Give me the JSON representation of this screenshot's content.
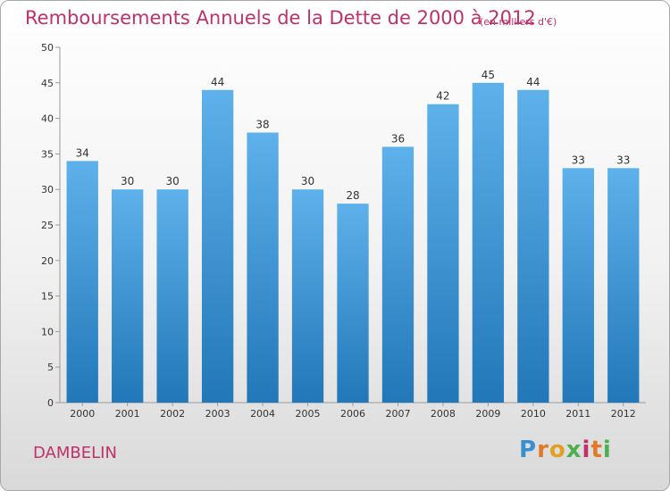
{
  "chart_data": {
    "type": "bar",
    "title": "Remboursements Annuels de la Dette de 2000 à 2012",
    "unit_note": "(en milliers d'€)",
    "categories": [
      "2000",
      "2001",
      "2002",
      "2003",
      "2004",
      "2005",
      "2006",
      "2007",
      "2008",
      "2009",
      "2010",
      "2011",
      "2012"
    ],
    "values": [
      34,
      30,
      30,
      44,
      38,
      30,
      28,
      36,
      42,
      45,
      44,
      33,
      33
    ],
    "ylim": [
      0,
      50
    ],
    "yticks": [
      0,
      5,
      10,
      15,
      20,
      25,
      30,
      35,
      40,
      45,
      50
    ],
    "grid": false,
    "bar_color_top": "#5eb1ea",
    "bar_color_bottom": "#2277b8"
  },
  "footer": {
    "commune": "DAMBELIN",
    "logo": "Proxiti"
  }
}
